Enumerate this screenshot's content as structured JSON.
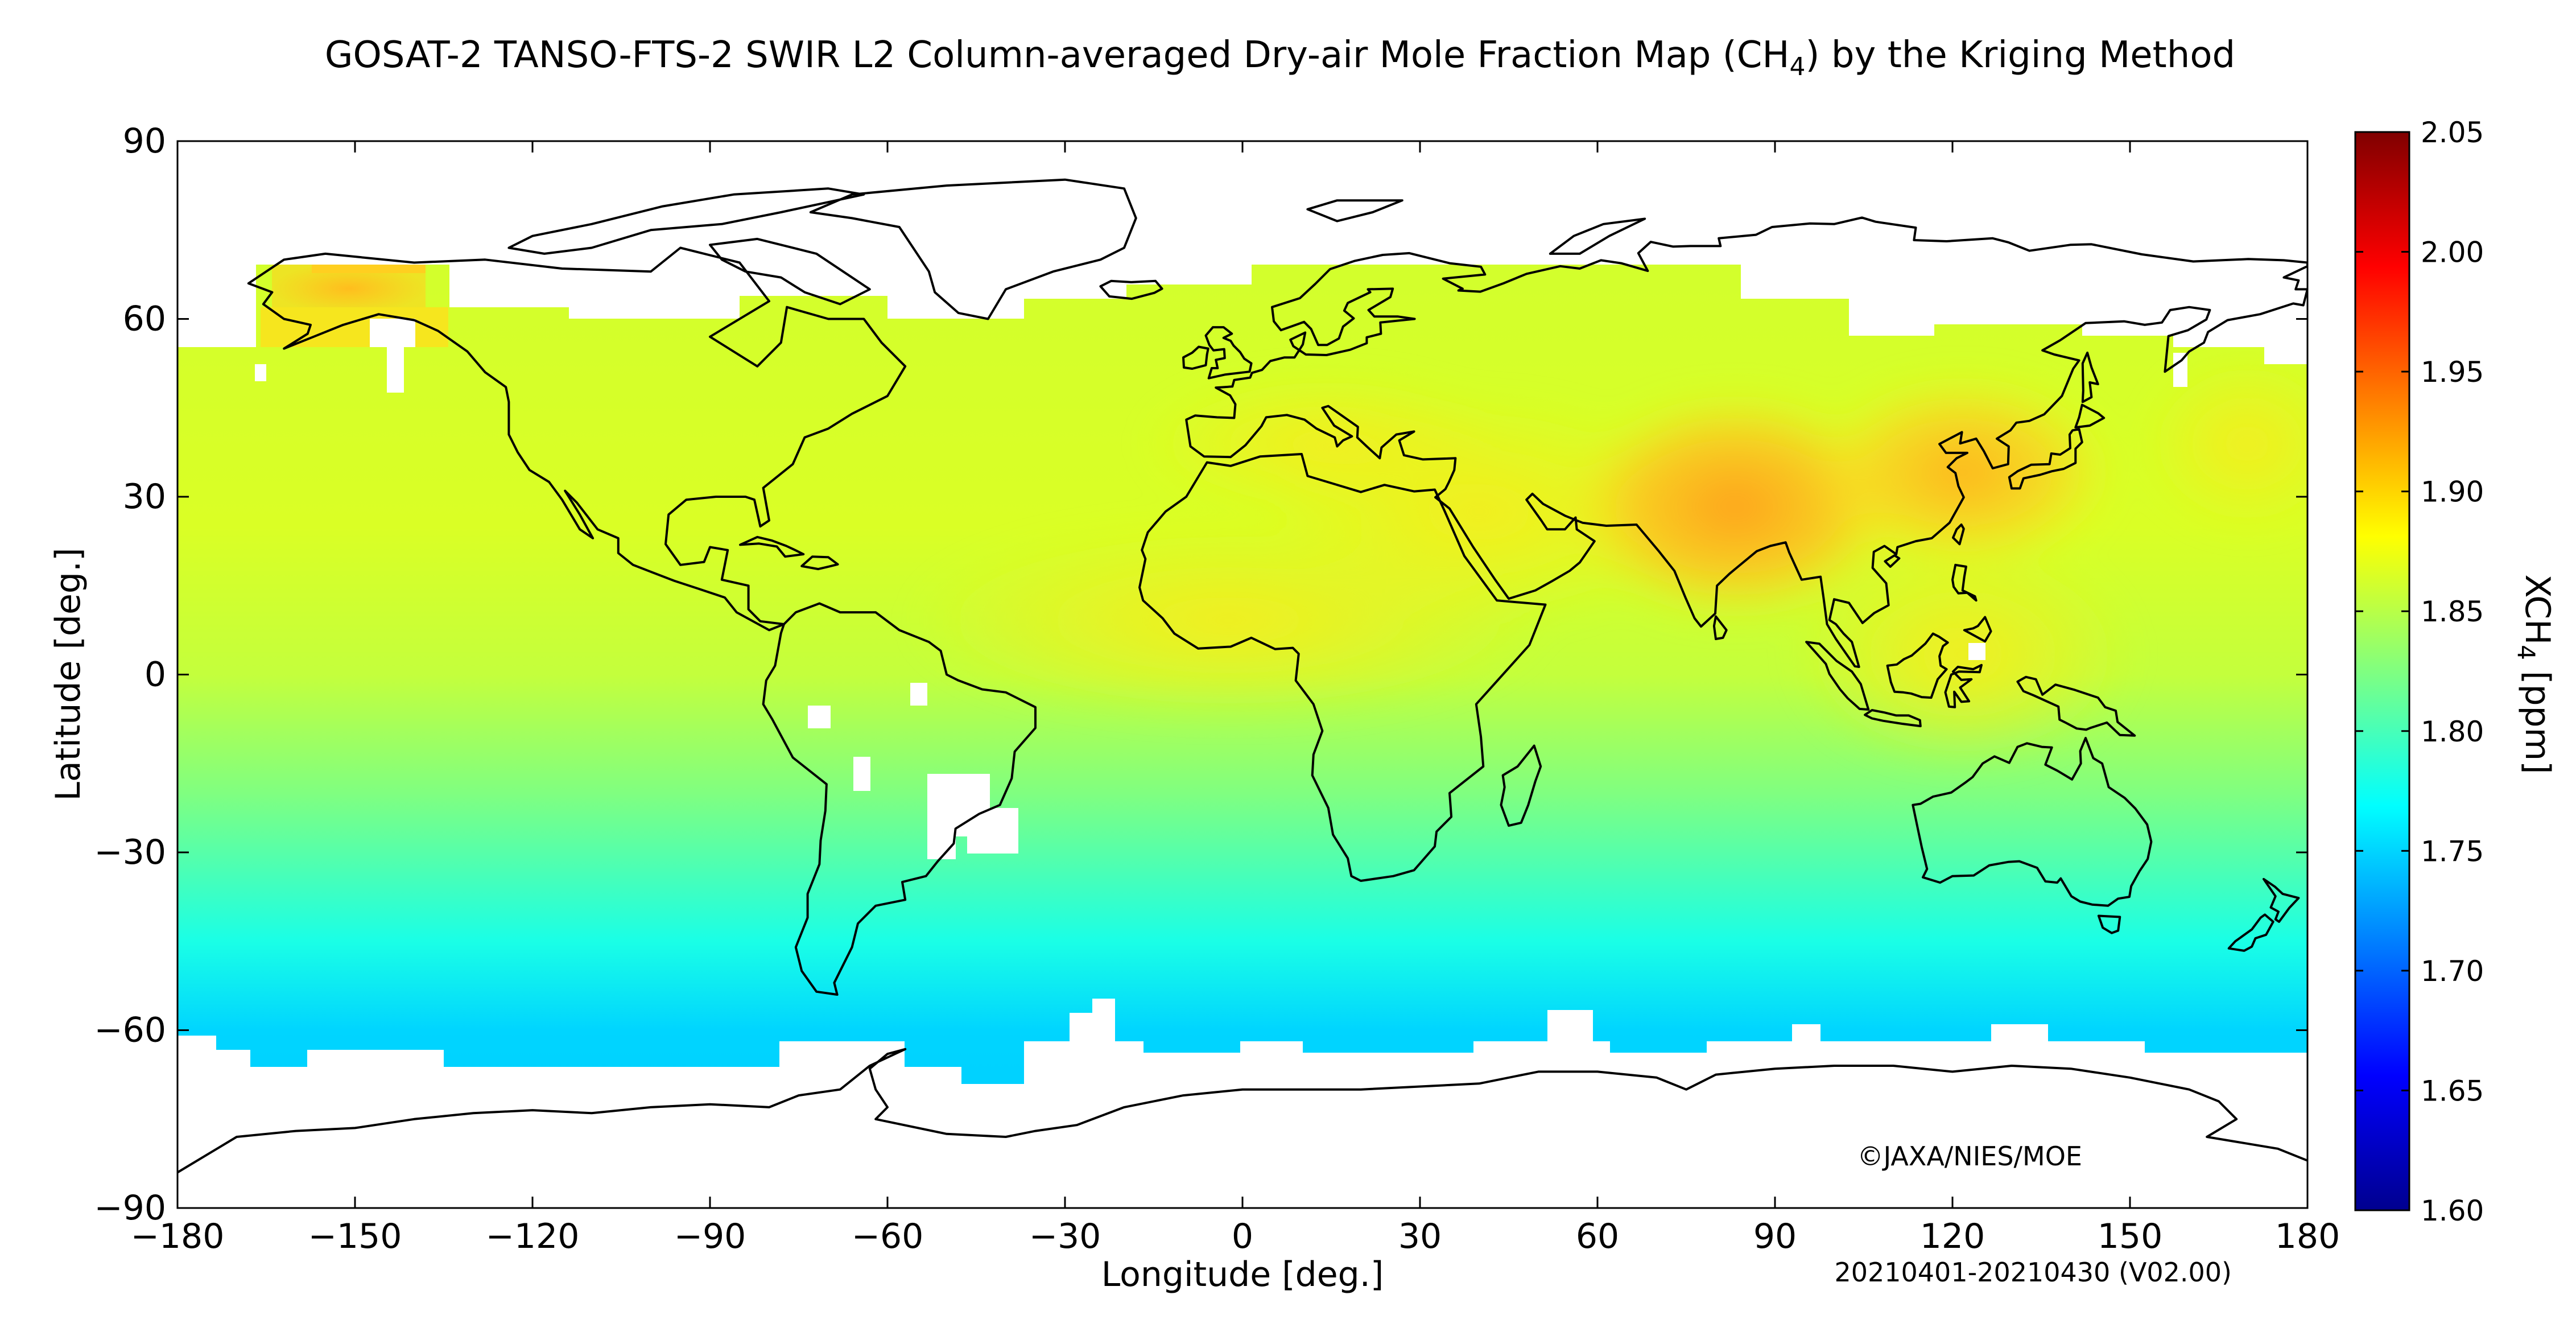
{
  "title": {
    "main": "GOSAT-2 TANSO-FTS-2 SWIR L2 Column-averaged Dry-air Mole Fraction Map (CH",
    "sub": "4",
    "tail": ") by the Kriging Method"
  },
  "chart_data": {
    "type": "heatmap",
    "subject": "world map",
    "xlabel": "Longitude [deg.]",
    "ylabel": "Latitude [deg.]",
    "xlim": [
      -180,
      180
    ],
    "ylim": [
      -90,
      90
    ],
    "xticks": [
      -180,
      -150,
      -120,
      -90,
      -60,
      -30,
      0,
      30,
      60,
      90,
      120,
      150,
      180
    ],
    "yticks": [
      -90,
      -60,
      -30,
      0,
      30,
      60,
      90
    ],
    "xtick_labels": [
      "−180",
      "−150",
      "−120",
      "−90",
      "−60",
      "−30",
      "0",
      "30",
      "60",
      "90",
      "120",
      "150",
      "180"
    ],
    "ytick_labels": [
      "−90",
      "−60",
      "−30",
      "0",
      "30",
      "60",
      "90"
    ],
    "colorbar": {
      "label_main": "XCH",
      "label_sub": "4",
      "label_tail": " [ppm]",
      "min": 1.6,
      "max": 2.05,
      "ticks": [
        "1.60",
        "1.65",
        "1.70",
        "1.75",
        "1.80",
        "1.85",
        "1.90",
        "1.95",
        "2.00",
        "2.05"
      ],
      "colors": [
        "#00008f",
        "#0000ff",
        "#0080ff",
        "#00ffff",
        "#80ff80",
        "#ffff00",
        "#ff8000",
        "#ff0000",
        "#800000"
      ]
    },
    "field_summary": {
      "background_ppm": 1.86,
      "south_of_45S_ppm": 1.78,
      "south_of_60S_ppm": 1.75,
      "hotspots": [
        {
          "region": "India / Bangladesh",
          "lon": 82,
          "lat": 26,
          "ppm": 1.94
        },
        {
          "region": "East China",
          "lon": 118,
          "lat": 32,
          "ppm": 1.925
        },
        {
          "region": "Alaska",
          "lon": -155,
          "lat": 66,
          "ppm": 1.925
        },
        {
          "region": "West Africa",
          "lon": 0,
          "lat": 10,
          "ppm": 1.895
        }
      ]
    },
    "no_data": "white"
  },
  "copyright": "©JAXA/NIES/MOE",
  "period": "20210401-20210430 (V02.00)"
}
